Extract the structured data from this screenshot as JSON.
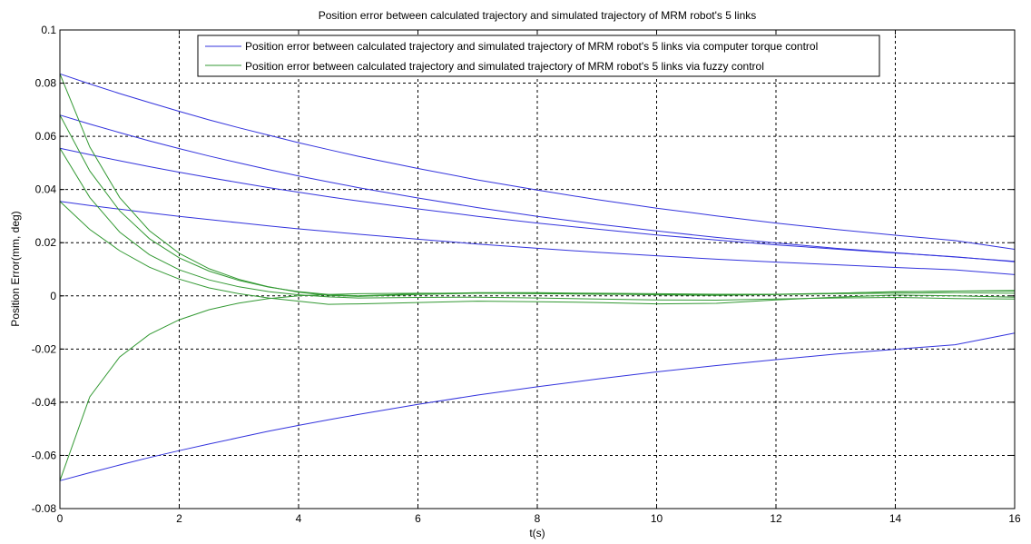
{
  "chart_data": {
    "type": "line",
    "title": "Position error between calculated trajectory and simulated trajectory of MRM robot's 5 links",
    "xlabel": "t(s)",
    "ylabel": "Position Error(mm, deg)",
    "xlim": [
      0,
      16
    ],
    "ylim": [
      -0.08,
      0.1
    ],
    "xticks": [
      0,
      2,
      4,
      6,
      8,
      10,
      12,
      14,
      16
    ],
    "yticks": [
      -0.08,
      -0.06,
      -0.04,
      -0.02,
      0,
      0.02,
      0.04,
      0.06,
      0.08,
      0.1
    ],
    "xtick_labels": [
      "0",
      "2",
      "4",
      "6",
      "8",
      "10",
      "12",
      "14",
      "16"
    ],
    "ytick_labels": [
      "-0.08",
      "-0.06",
      "-0.04",
      "-0.02",
      "0",
      "0.02",
      "0.04",
      "0.06",
      "0.08",
      "0.1"
    ],
    "grid": true,
    "legend_position": "top",
    "legend": [
      {
        "label": "Position error between calculated trajectory and simulated trajectory of MRM robot's 5 links via computer torque control",
        "color": "#3333dd"
      },
      {
        "label": "Position error between calculated trajectory and simulated trajectory of MRM robot's 5 links via fuzzy control",
        "color": "#339933"
      }
    ],
    "x": [
      0,
      0.5,
      1,
      1.5,
      2,
      2.5,
      3,
      3.5,
      4,
      4.5,
      5,
      6,
      7,
      8,
      9,
      10,
      11,
      12,
      13,
      14,
      15,
      16
    ],
    "series": [
      {
        "group": "computer torque control",
        "color": "#3333dd",
        "values": [
          0.0835,
          0.0797,
          0.0761,
          0.0727,
          0.0694,
          0.0662,
          0.0632,
          0.0604,
          0.0576,
          0.055,
          0.0525,
          0.0479,
          0.0436,
          0.0398,
          0.0362,
          0.033,
          0.0301,
          0.0274,
          0.025,
          0.0228,
          0.0208,
          0.0175
        ]
      },
      {
        "group": "computer torque control",
        "color": "#3333dd",
        "values": [
          0.068,
          0.0646,
          0.0614,
          0.0583,
          0.0554,
          0.0526,
          0.05,
          0.0475,
          0.0451,
          0.0429,
          0.0407,
          0.0368,
          0.0332,
          0.0299,
          0.027,
          0.0244,
          0.022,
          0.0199,
          0.0179,
          0.0162,
          0.0146,
          0.013
        ]
      },
      {
        "group": "computer torque control",
        "color": "#3333dd",
        "values": [
          0.0555,
          0.0531,
          0.0508,
          0.0486,
          0.0465,
          0.0445,
          0.0426,
          0.0407,
          0.039,
          0.0373,
          0.0357,
          0.0327,
          0.0299,
          0.0274,
          0.0251,
          0.0229,
          0.021,
          0.0192,
          0.0176,
          0.0161,
          0.0147,
          0.0128
        ]
      },
      {
        "group": "computer torque control",
        "color": "#3333dd",
        "values": [
          0.0355,
          0.034,
          0.0326,
          0.0312,
          0.0299,
          0.0287,
          0.0275,
          0.0263,
          0.0252,
          0.0242,
          0.0232,
          0.0213,
          0.0195,
          0.0179,
          0.0164,
          0.0151,
          0.0138,
          0.0127,
          0.0117,
          0.0107,
          0.0098,
          0.008
        ]
      },
      {
        "group": "computer torque control",
        "color": "#3333dd",
        "values": [
          -0.0695,
          -0.0665,
          -0.0636,
          -0.0608,
          -0.0582,
          -0.0557,
          -0.0533,
          -0.0509,
          -0.0487,
          -0.0466,
          -0.0446,
          -0.0408,
          -0.0373,
          -0.0342,
          -0.0313,
          -0.0286,
          -0.0262,
          -0.024,
          -0.0219,
          -0.0201,
          -0.0184,
          -0.014
        ]
      },
      {
        "group": "fuzzy control",
        "color": "#339933",
        "values": [
          0.0835,
          0.056,
          0.037,
          0.0245,
          0.016,
          0.0102,
          0.0062,
          0.0034,
          0.0014,
          0.0002,
          -0.0002,
          0.0005,
          0.001,
          0.001,
          0.0008,
          0.0004,
          0.0002,
          0.0005,
          0.001,
          0.0015,
          0.0018,
          0.002
        ]
      },
      {
        "group": "fuzzy control",
        "color": "#339933",
        "values": [
          0.068,
          0.047,
          0.032,
          0.0215,
          0.0143,
          0.0093,
          0.0058,
          0.0033,
          0.0016,
          0.0005,
          0.0,
          0.0008,
          0.0012,
          0.0012,
          0.001,
          0.0008,
          0.0006,
          0.0006,
          0.001,
          0.0016,
          0.0018,
          0.0018
        ]
      },
      {
        "group": "fuzzy control",
        "color": "#339933",
        "values": [
          0.0555,
          0.037,
          0.024,
          0.0155,
          0.0098,
          0.006,
          0.0034,
          0.0016,
          0.0004,
          -0.0004,
          -0.0008,
          -0.0006,
          -0.0005,
          -0.0008,
          -0.0012,
          -0.0015,
          -0.0016,
          -0.0012,
          -0.0008,
          -0.0006,
          -0.001,
          -0.0012
        ]
      },
      {
        "group": "fuzzy control",
        "color": "#339933",
        "values": [
          0.0355,
          0.025,
          0.017,
          0.0108,
          0.0063,
          0.003,
          0.0008,
          -0.0008,
          -0.002,
          -0.0032,
          -0.003,
          -0.0025,
          -0.002,
          -0.0022,
          -0.0025,
          -0.003,
          -0.0028,
          -0.0015,
          -0.0005,
          0.0003,
          0.0,
          -0.0005
        ]
      },
      {
        "group": "fuzzy control",
        "color": "#339933",
        "values": [
          -0.0695,
          -0.038,
          -0.023,
          -0.0145,
          -0.009,
          -0.0052,
          -0.0027,
          -0.001,
          0.0,
          0.0005,
          0.0008,
          0.001,
          0.001,
          0.0008,
          0.0006,
          0.0005,
          0.0004,
          0.0005,
          0.0008,
          0.001,
          0.0012,
          0.001
        ]
      }
    ]
  }
}
